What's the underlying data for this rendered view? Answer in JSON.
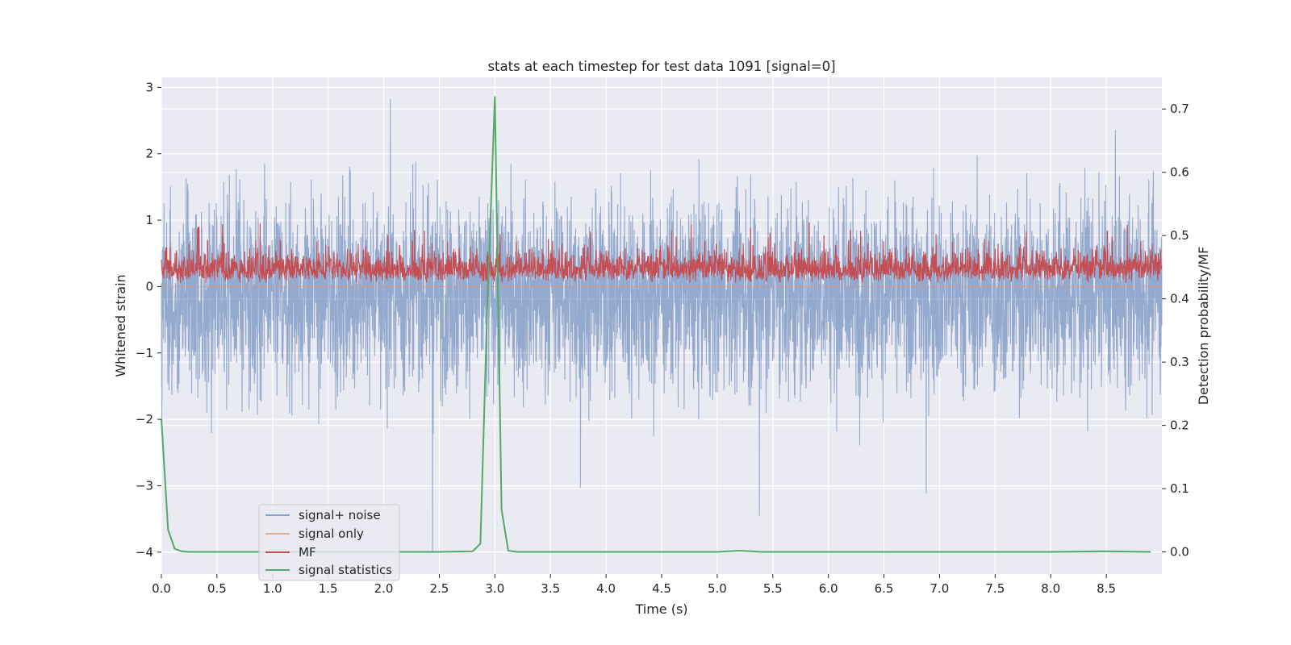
{
  "chart_data": {
    "type": "line",
    "title": "stats at each timestep for test data 1091 [signal=0]",
    "xlabel": "Time (s)",
    "ylabel_left": "Whitened strain",
    "ylabel_right": "Detection probability/MF",
    "xlim": [
      0,
      9.0
    ],
    "ylim_left": [
      -4.33,
      3.15
    ],
    "ylim_right": [
      -0.035,
      0.75
    ],
    "grid": true,
    "legend_placement": "lower-left",
    "x_ticks": [
      "0.0",
      "0.5",
      "1.0",
      "1.5",
      "2.0",
      "2.5",
      "3.0",
      "3.5",
      "4.0",
      "4.5",
      "5.0",
      "5.5",
      "6.0",
      "6.5",
      "7.0",
      "7.5",
      "8.0",
      "8.5"
    ],
    "y_ticks_left": [
      "3",
      "2",
      "1",
      "0",
      "−1",
      "−2",
      "−3",
      "−4"
    ],
    "y_ticks_right": [
      "0.7",
      "0.6",
      "0.5",
      "0.4",
      "0.3",
      "0.2",
      "0.1",
      "0.0"
    ],
    "series": [
      {
        "name": "signal+ noise",
        "axis": "left",
        "color": "#4c72b0",
        "opacity": 0.55,
        "sample_rate_hz": 2048,
        "approx_range": [
          -4.0,
          2.85
        ],
        "notable_extremes": [
          {
            "x": 2.44,
            "y": -4.0
          },
          {
            "x": 2.06,
            "y": 2.82
          },
          {
            "x": 5.38,
            "y": -3.45
          },
          {
            "x": 6.88,
            "y": -3.12
          },
          {
            "x": 3.77,
            "y": -3.03
          }
        ]
      },
      {
        "name": "signal only",
        "axis": "left",
        "color": "#dd8452",
        "values_summary": "flat at 0 (no injected signal)"
      },
      {
        "name": "MF",
        "axis": "left",
        "color": "#c44e52",
        "approx_range": [
          0.0,
          0.97
        ],
        "typical_mean": 0.3
      },
      {
        "name": "signal statistics",
        "axis": "right",
        "color": "#55a868",
        "x": [
          0.0,
          0.06,
          0.12,
          0.18,
          0.25,
          0.5,
          1.0,
          1.5,
          2.0,
          2.5,
          2.8,
          2.87,
          2.93,
          3.0,
          3.06,
          3.12,
          3.2,
          3.5,
          4.0,
          4.5,
          5.0,
          5.1,
          5.2,
          5.3,
          5.4,
          5.5,
          6.0,
          6.5,
          7.0,
          7.5,
          8.0,
          8.5,
          8.9
        ],
        "values": [
          0.21,
          0.035,
          0.005,
          0.001,
          0.0,
          0.0,
          0.0,
          0.0,
          0.0,
          0.0,
          0.001,
          0.013,
          0.38,
          0.72,
          0.067,
          0.002,
          0.0,
          0.0,
          0.0,
          0.0,
          0.0,
          0.001,
          0.002,
          0.001,
          0.0,
          0.0,
          0.0,
          0.0,
          0.0,
          0.0,
          0.0,
          0.001,
          0.0
        ]
      }
    ],
    "legend": [
      "signal+ noise",
      "signal only",
      "MF",
      "signal statistics"
    ]
  }
}
